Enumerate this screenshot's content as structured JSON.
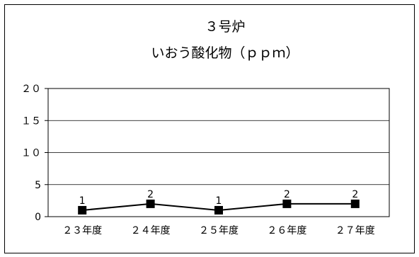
{
  "chart_data": {
    "type": "line",
    "title": "３号炉",
    "subtitle": "いおう酸化物（ｐｐｍ）",
    "categories": [
      "２３年度",
      "２４年度",
      "２５年度",
      "２６年度",
      "２７年度"
    ],
    "series": [
      {
        "values": [
          1,
          2,
          1,
          2,
          2
        ],
        "color": "#000000"
      }
    ],
    "data_labels": [
      "1",
      "2",
      "1",
      "2",
      "2"
    ],
    "y_ticks": [
      "0",
      "5",
      "１０",
      "１５",
      "２０"
    ],
    "ylim": [
      0,
      20
    ],
    "xlabel": "",
    "ylabel": "",
    "grid": true,
    "legend": "none",
    "marker": "square"
  }
}
